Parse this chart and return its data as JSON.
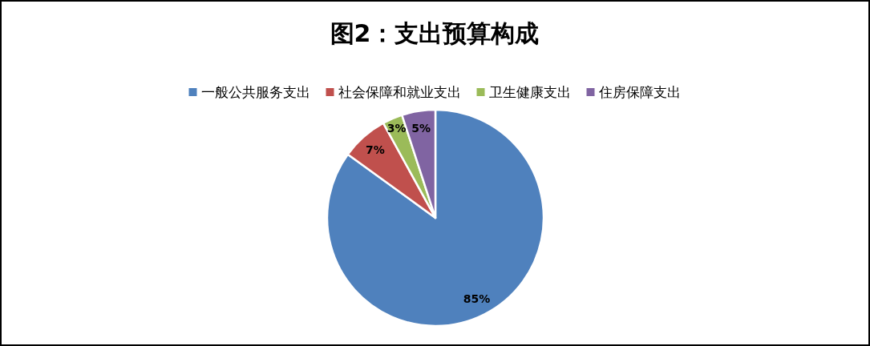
{
  "chart_data": {
    "type": "pie",
    "title": "图2：支出预算构成",
    "categories": [
      "一般公共服务支出",
      "社会保障和就业支出",
      "卫生健康支出",
      "住房保障支出"
    ],
    "values": [
      85,
      7,
      3,
      5
    ],
    "colors": [
      "#4f81bd",
      "#c0504d",
      "#9bbb59",
      "#8064a2"
    ],
    "value_labels": [
      "85%",
      "7%",
      "3%",
      "5%"
    ],
    "legend": "top"
  }
}
